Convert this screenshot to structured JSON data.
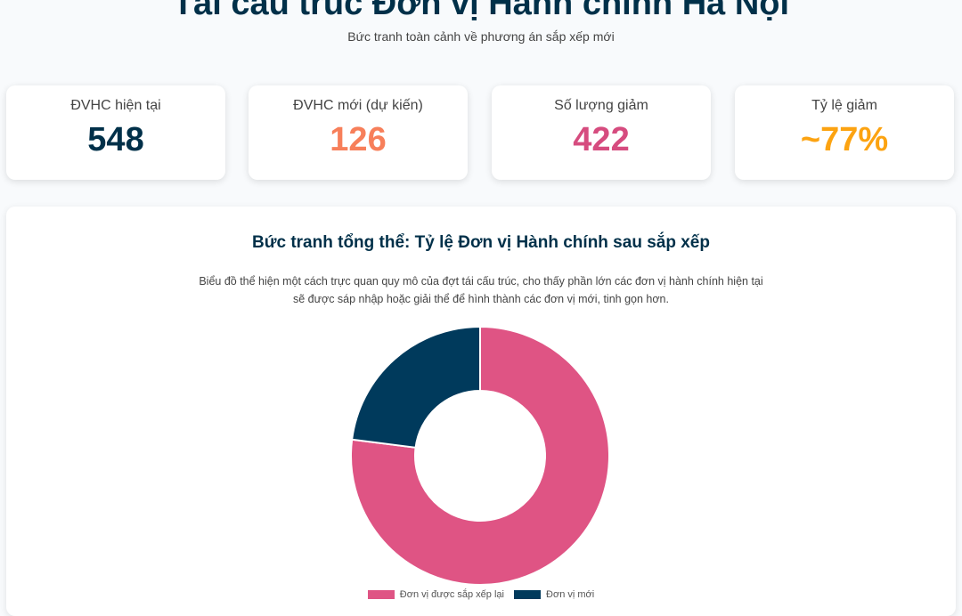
{
  "header": {
    "title": "Tái cấu trúc Đơn vị Hành chính Hà Nội",
    "subtitle": "Bức tranh toàn cảnh về phương án sắp xếp mới"
  },
  "stats": [
    {
      "label": "ĐVHC hiện tại",
      "value": "548",
      "color": "#003049"
    },
    {
      "label": "ĐVHC mới (dự kiến)",
      "value": "126",
      "color": "#f77f5a"
    },
    {
      "label": "Số lượng giảm",
      "value": "422",
      "color": "#d64c7f"
    },
    {
      "label": "Tỷ lệ giảm",
      "value": "~77%",
      "color": "#fca311"
    }
  ],
  "chart_data": {
    "type": "pie",
    "title": "Bức tranh tổng thể: Tỷ lệ Đơn vị Hành chính sau sắp xếp",
    "description": "Biểu đồ thể hiện một cách trực quan quy mô của đợt tái cấu trúc, cho thấy phần lớn các đơn vị hành chính hiện tại sẽ được sáp nhập hoặc giải thể để hình thành các đơn vị mới, tinh gọn hơn.",
    "categories": [
      "Đơn vị được sắp xếp lại",
      "Đơn vị mới"
    ],
    "values": [
      422,
      126
    ],
    "colors": [
      "#df5484",
      "#003a5c"
    ],
    "legend": "bottom"
  }
}
